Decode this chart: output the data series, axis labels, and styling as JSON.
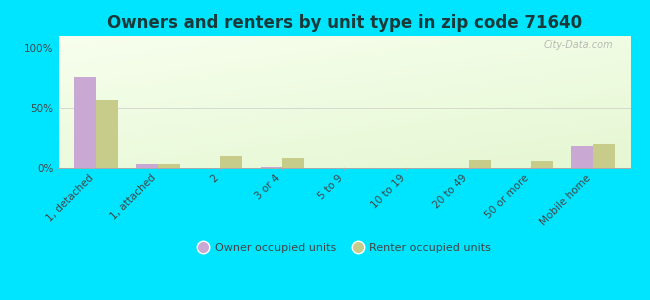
{
  "title": "Owners and renters by unit type in zip code 71640",
  "categories": [
    "1, detached",
    "1, attached",
    "2",
    "3 or 4",
    "5 to 9",
    "10 to 19",
    "20 to 49",
    "50 or more",
    "Mobile home"
  ],
  "owner_values": [
    76,
    3,
    0,
    1,
    0,
    0,
    0,
    0,
    18
  ],
  "renter_values": [
    57,
    3,
    10,
    8,
    0,
    0,
    7,
    6,
    20
  ],
  "owner_color": "#c9a8d4",
  "renter_color": "#c8cc8a",
  "bg_color": "#00e5ff",
  "ylabel_ticks": [
    "0%",
    "50%",
    "100%"
  ],
  "ytick_vals": [
    0,
    50,
    100
  ],
  "ylim": [
    0,
    110
  ],
  "watermark": "City-Data.com",
  "legend_owner": "Owner occupied units",
  "legend_renter": "Renter occupied units",
  "title_fontsize": 12,
  "tick_fontsize": 7.5,
  "bar_width": 0.35,
  "title_color": "#1a3a3a"
}
